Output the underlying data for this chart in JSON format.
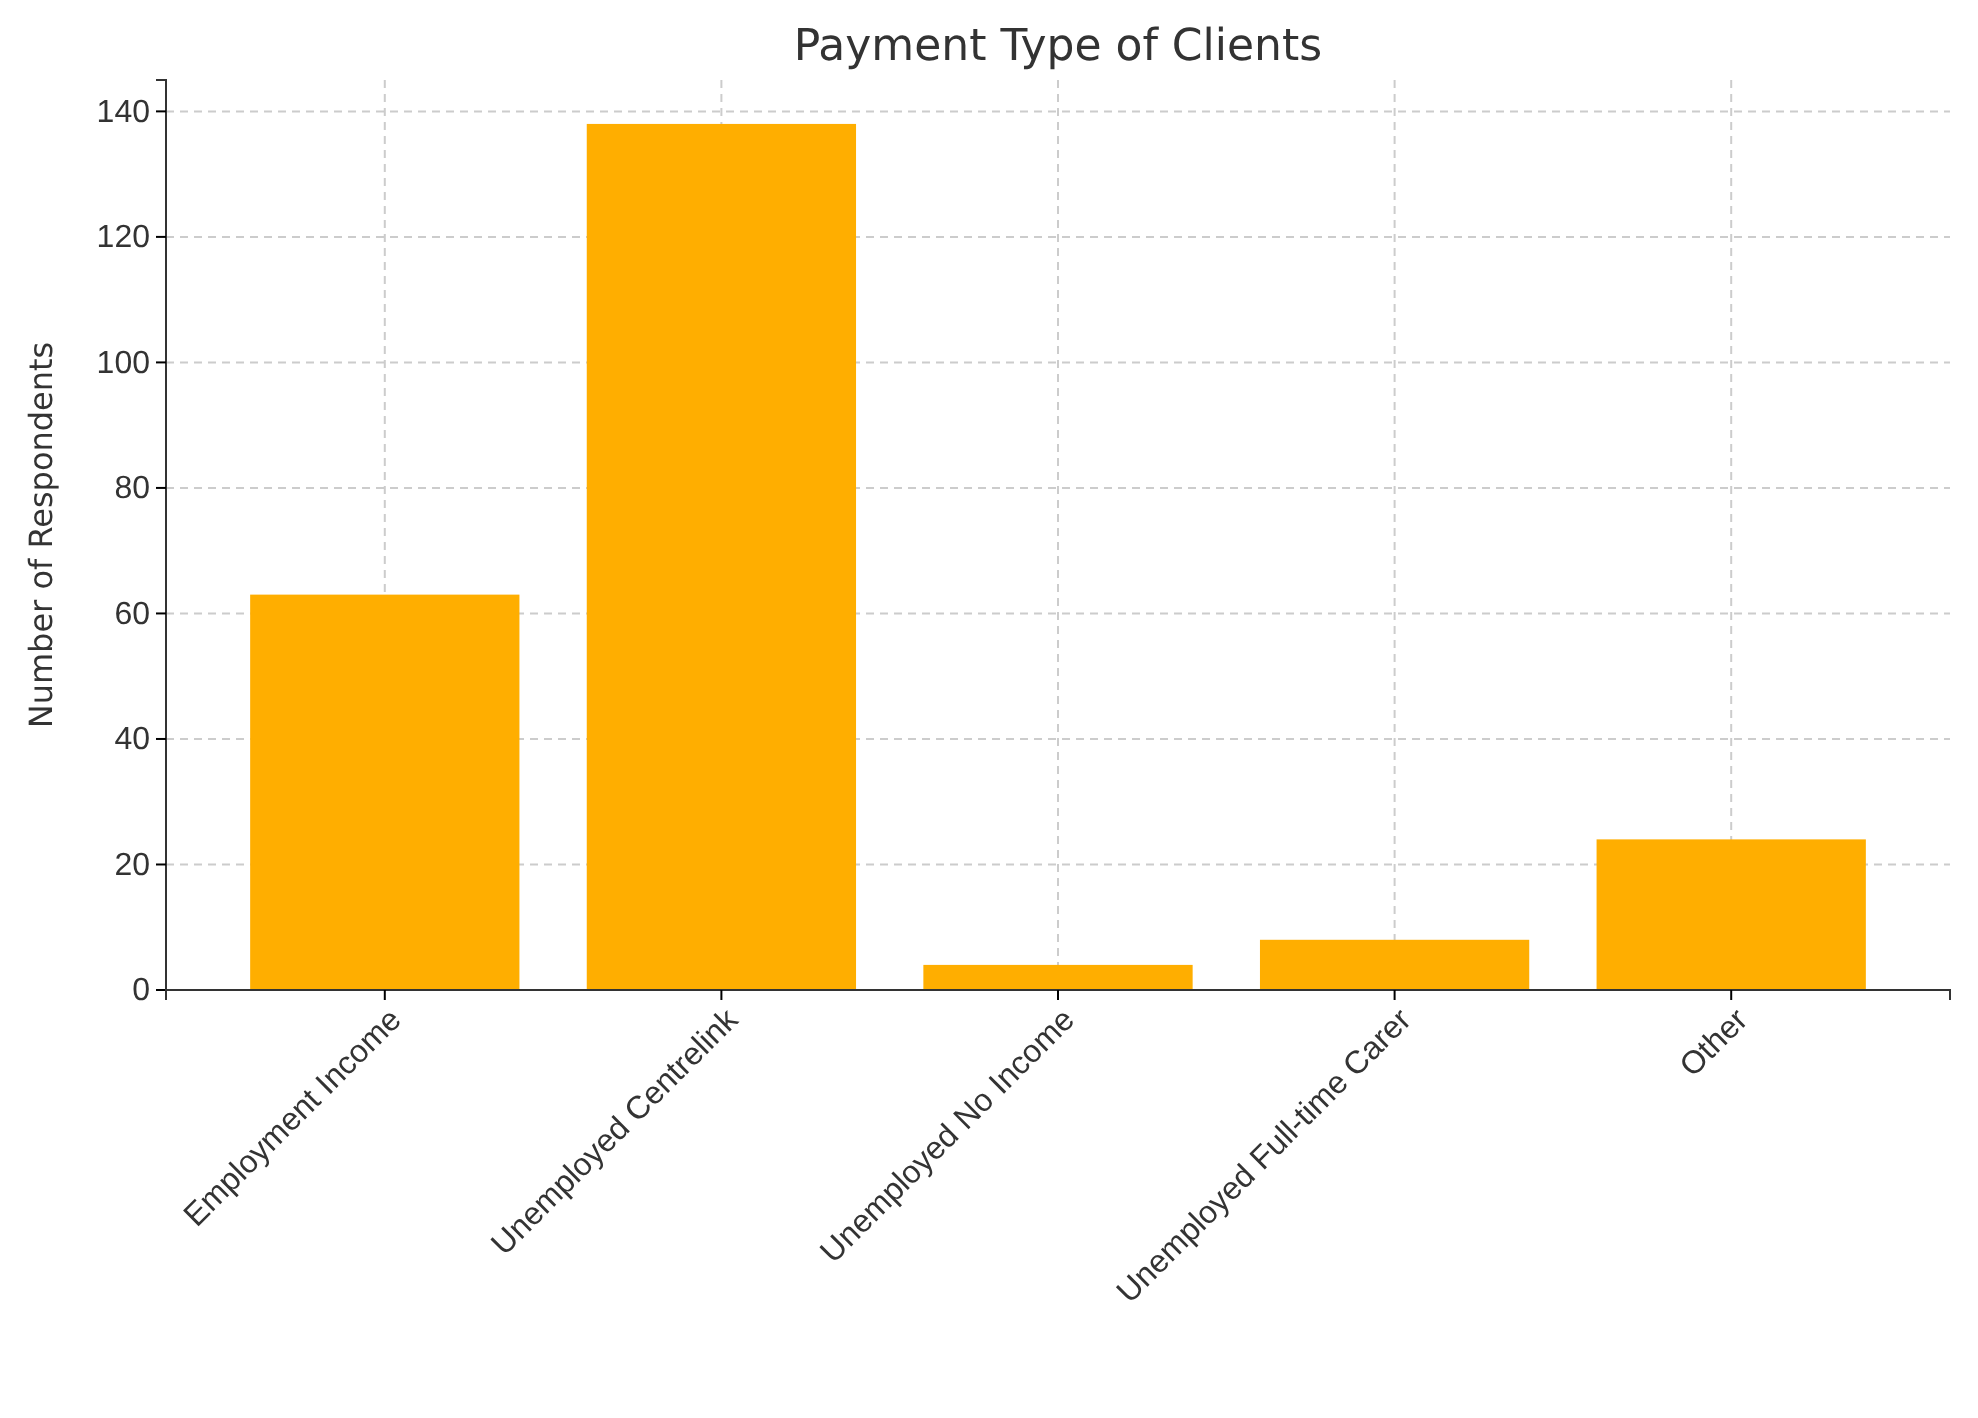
{
  "chart_data": {
    "type": "bar",
    "title": "Payment Type of Clients",
    "ylabel": "Number of Respondents",
    "categories": [
      "Employment Income",
      "Unemployed Centrelink",
      "Unemployed No Income",
      "Unemployed Full-time Carer",
      "Other"
    ],
    "values": [
      63,
      138,
      4,
      8,
      24
    ],
    "color": "#ffae00",
    "ylim": [
      0,
      145
    ],
    "yticks": [
      0,
      20,
      40,
      60,
      80,
      100,
      120,
      140
    ],
    "grid": true
  }
}
